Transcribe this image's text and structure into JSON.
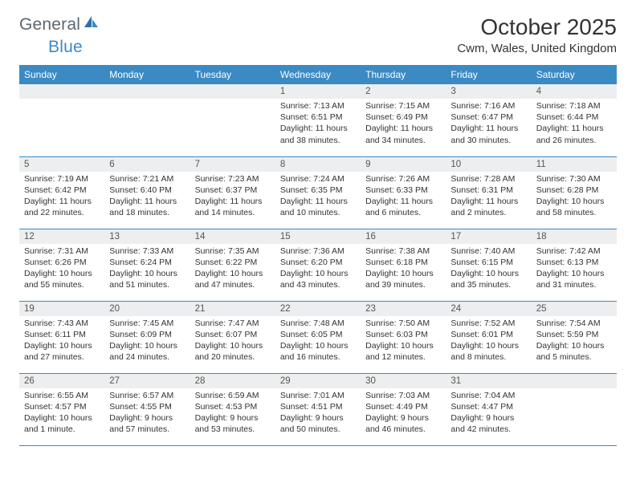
{
  "logo": {
    "general": "General",
    "blue": "Blue"
  },
  "title": "October 2025",
  "location": "Cwm, Wales, United Kingdom",
  "colors": {
    "header_bg": "#3b8ac4",
    "header_text": "#ffffff",
    "daynum_bg": "#eceeef",
    "border": "#3b8ac4",
    "text": "#333333",
    "logo_gray": "#5b6770",
    "logo_blue": "#3b8ac4"
  },
  "weekdays": [
    "Sunday",
    "Monday",
    "Tuesday",
    "Wednesday",
    "Thursday",
    "Friday",
    "Saturday"
  ],
  "weeks": [
    [
      {
        "n": "",
        "sr": "",
        "ss": "",
        "dl": ""
      },
      {
        "n": "",
        "sr": "",
        "ss": "",
        "dl": ""
      },
      {
        "n": "",
        "sr": "",
        "ss": "",
        "dl": ""
      },
      {
        "n": "1",
        "sr": "Sunrise: 7:13 AM",
        "ss": "Sunset: 6:51 PM",
        "dl": "Daylight: 11 hours and 38 minutes."
      },
      {
        "n": "2",
        "sr": "Sunrise: 7:15 AM",
        "ss": "Sunset: 6:49 PM",
        "dl": "Daylight: 11 hours and 34 minutes."
      },
      {
        "n": "3",
        "sr": "Sunrise: 7:16 AM",
        "ss": "Sunset: 6:47 PM",
        "dl": "Daylight: 11 hours and 30 minutes."
      },
      {
        "n": "4",
        "sr": "Sunrise: 7:18 AM",
        "ss": "Sunset: 6:44 PM",
        "dl": "Daylight: 11 hours and 26 minutes."
      }
    ],
    [
      {
        "n": "5",
        "sr": "Sunrise: 7:19 AM",
        "ss": "Sunset: 6:42 PM",
        "dl": "Daylight: 11 hours and 22 minutes."
      },
      {
        "n": "6",
        "sr": "Sunrise: 7:21 AM",
        "ss": "Sunset: 6:40 PM",
        "dl": "Daylight: 11 hours and 18 minutes."
      },
      {
        "n": "7",
        "sr": "Sunrise: 7:23 AM",
        "ss": "Sunset: 6:37 PM",
        "dl": "Daylight: 11 hours and 14 minutes."
      },
      {
        "n": "8",
        "sr": "Sunrise: 7:24 AM",
        "ss": "Sunset: 6:35 PM",
        "dl": "Daylight: 11 hours and 10 minutes."
      },
      {
        "n": "9",
        "sr": "Sunrise: 7:26 AM",
        "ss": "Sunset: 6:33 PM",
        "dl": "Daylight: 11 hours and 6 minutes."
      },
      {
        "n": "10",
        "sr": "Sunrise: 7:28 AM",
        "ss": "Sunset: 6:31 PM",
        "dl": "Daylight: 11 hours and 2 minutes."
      },
      {
        "n": "11",
        "sr": "Sunrise: 7:30 AM",
        "ss": "Sunset: 6:28 PM",
        "dl": "Daylight: 10 hours and 58 minutes."
      }
    ],
    [
      {
        "n": "12",
        "sr": "Sunrise: 7:31 AM",
        "ss": "Sunset: 6:26 PM",
        "dl": "Daylight: 10 hours and 55 minutes."
      },
      {
        "n": "13",
        "sr": "Sunrise: 7:33 AM",
        "ss": "Sunset: 6:24 PM",
        "dl": "Daylight: 10 hours and 51 minutes."
      },
      {
        "n": "14",
        "sr": "Sunrise: 7:35 AM",
        "ss": "Sunset: 6:22 PM",
        "dl": "Daylight: 10 hours and 47 minutes."
      },
      {
        "n": "15",
        "sr": "Sunrise: 7:36 AM",
        "ss": "Sunset: 6:20 PM",
        "dl": "Daylight: 10 hours and 43 minutes."
      },
      {
        "n": "16",
        "sr": "Sunrise: 7:38 AM",
        "ss": "Sunset: 6:18 PM",
        "dl": "Daylight: 10 hours and 39 minutes."
      },
      {
        "n": "17",
        "sr": "Sunrise: 7:40 AM",
        "ss": "Sunset: 6:15 PM",
        "dl": "Daylight: 10 hours and 35 minutes."
      },
      {
        "n": "18",
        "sr": "Sunrise: 7:42 AM",
        "ss": "Sunset: 6:13 PM",
        "dl": "Daylight: 10 hours and 31 minutes."
      }
    ],
    [
      {
        "n": "19",
        "sr": "Sunrise: 7:43 AM",
        "ss": "Sunset: 6:11 PM",
        "dl": "Daylight: 10 hours and 27 minutes."
      },
      {
        "n": "20",
        "sr": "Sunrise: 7:45 AM",
        "ss": "Sunset: 6:09 PM",
        "dl": "Daylight: 10 hours and 24 minutes."
      },
      {
        "n": "21",
        "sr": "Sunrise: 7:47 AM",
        "ss": "Sunset: 6:07 PM",
        "dl": "Daylight: 10 hours and 20 minutes."
      },
      {
        "n": "22",
        "sr": "Sunrise: 7:48 AM",
        "ss": "Sunset: 6:05 PM",
        "dl": "Daylight: 10 hours and 16 minutes."
      },
      {
        "n": "23",
        "sr": "Sunrise: 7:50 AM",
        "ss": "Sunset: 6:03 PM",
        "dl": "Daylight: 10 hours and 12 minutes."
      },
      {
        "n": "24",
        "sr": "Sunrise: 7:52 AM",
        "ss": "Sunset: 6:01 PM",
        "dl": "Daylight: 10 hours and 8 minutes."
      },
      {
        "n": "25",
        "sr": "Sunrise: 7:54 AM",
        "ss": "Sunset: 5:59 PM",
        "dl": "Daylight: 10 hours and 5 minutes."
      }
    ],
    [
      {
        "n": "26",
        "sr": "Sunrise: 6:55 AM",
        "ss": "Sunset: 4:57 PM",
        "dl": "Daylight: 10 hours and 1 minute."
      },
      {
        "n": "27",
        "sr": "Sunrise: 6:57 AM",
        "ss": "Sunset: 4:55 PM",
        "dl": "Daylight: 9 hours and 57 minutes."
      },
      {
        "n": "28",
        "sr": "Sunrise: 6:59 AM",
        "ss": "Sunset: 4:53 PM",
        "dl": "Daylight: 9 hours and 53 minutes."
      },
      {
        "n": "29",
        "sr": "Sunrise: 7:01 AM",
        "ss": "Sunset: 4:51 PM",
        "dl": "Daylight: 9 hours and 50 minutes."
      },
      {
        "n": "30",
        "sr": "Sunrise: 7:03 AM",
        "ss": "Sunset: 4:49 PM",
        "dl": "Daylight: 9 hours and 46 minutes."
      },
      {
        "n": "31",
        "sr": "Sunrise: 7:04 AM",
        "ss": "Sunset: 4:47 PM",
        "dl": "Daylight: 9 hours and 42 minutes."
      },
      {
        "n": "",
        "sr": "",
        "ss": "",
        "dl": ""
      }
    ]
  ]
}
